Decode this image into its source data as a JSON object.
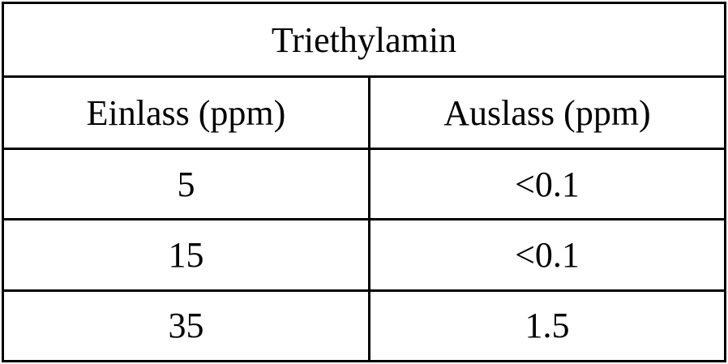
{
  "table": {
    "title": "Triethylamin",
    "headers": [
      "Einlass (ppm)",
      "Auslass (ppm)"
    ],
    "rows": [
      [
        "5",
        "<0.1"
      ],
      [
        "15",
        "<0.1"
      ],
      [
        "35",
        "1.5"
      ]
    ]
  }
}
